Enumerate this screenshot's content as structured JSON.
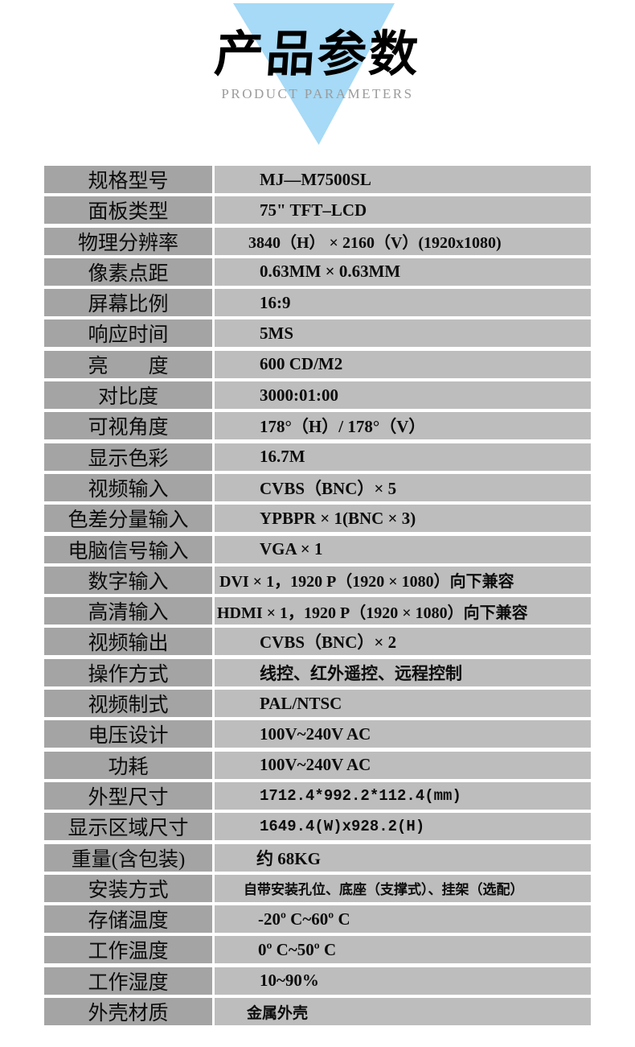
{
  "header": {
    "title": "产品参数",
    "subtitle": "PRODUCT PARAMETERS",
    "triangle_color": "#a6daf6",
    "title_color": "#000000",
    "subtitle_color": "#9b9b9b"
  },
  "table": {
    "label_bg": "#a4a4a4",
    "value_bg": "#bdbdbd",
    "rows": [
      {
        "label": "规格型号",
        "value": "MJ—M7500SL"
      },
      {
        "label": "面板类型",
        "value": "75\" TFT–LCD"
      },
      {
        "label": "物理分辨率",
        "value": "3840（H） × 2160（V）(1920x1080)"
      },
      {
        "label": "像素点距",
        "value": "0.63MM × 0.63MM"
      },
      {
        "label": "屏幕比例",
        "value": "16:9"
      },
      {
        "label": "响应时间",
        "value": "5MS"
      },
      {
        "label": "亮　　度",
        "value": "600 CD/M2"
      },
      {
        "label": "对比度",
        "value": "3000:01:00"
      },
      {
        "label": "可视角度",
        "value": "178°（H）/ 178°（V）"
      },
      {
        "label": "显示色彩",
        "value": "16.7M"
      },
      {
        "label": "视频输入",
        "value": "CVBS（BNC）× 5"
      },
      {
        "label": "色差分量输入",
        "value": "YPBPR × 1(BNC × 3)"
      },
      {
        "label": "电脑信号输入",
        "value": "VGA × 1"
      },
      {
        "label": "数字输入",
        "value": "DVI × 1，1920 P（1920 × 1080）向下兼容"
      },
      {
        "label": "高清输入",
        "value": "HDMI × 1，1920 P（1920 × 1080）向下兼容"
      },
      {
        "label": "视频输出",
        "value": "CVBS（BNC）× 2"
      },
      {
        "label": "操作方式",
        "value": "线控、红外遥控、远程控制"
      },
      {
        "label": "视频制式",
        "value": "PAL/NTSC"
      },
      {
        "label": "电压设计",
        "value": "100V~240V AC"
      },
      {
        "label": "功耗",
        "value": "100V~240V AC"
      },
      {
        "label": "外型尺寸",
        "value": "1712.4*992.2*112.4(mm)"
      },
      {
        "label": "显示区域尺寸",
        "value": "1649.4(W)x928.2(H)"
      },
      {
        "label": "重量(含包装)",
        "value": "约 68KG"
      },
      {
        "label": "安装方式",
        "value": "自带安装孔位、底座（支撑式）、挂架（选配）"
      },
      {
        "label": "存储温度",
        "value": "-20º C~60º C"
      },
      {
        "label": "工作温度",
        "value": "0º C~50º C"
      },
      {
        "label": "工作湿度",
        "value": "10~90%"
      },
      {
        "label": "外壳材质",
        "value": "金属外壳"
      }
    ]
  }
}
